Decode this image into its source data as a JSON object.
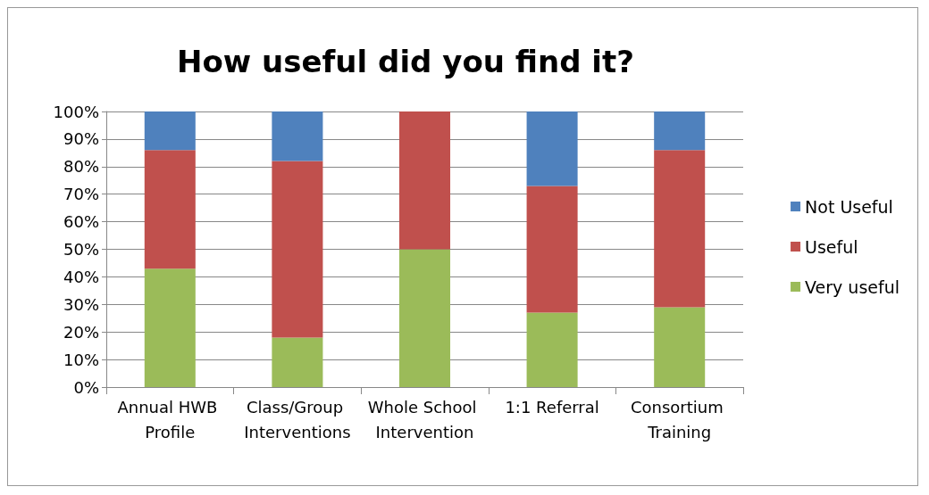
{
  "chart_data": {
    "type": "bar",
    "title": "How useful did you find it?",
    "stacked": true,
    "categories": [
      "Annual HWB Profile",
      "Class/Group Interventions",
      "Whole School Intervention",
      "1:1 Referral",
      "Consortium Training"
    ],
    "series": [
      {
        "name": "Very useful",
        "color": "#9bbb59",
        "values": [
          43,
          18,
          50,
          27,
          29
        ]
      },
      {
        "name": "Useful",
        "color": "#c0504d",
        "values": [
          43,
          64,
          50,
          46,
          57
        ]
      },
      {
        "name": "Not Useful",
        "color": "#4f81bd",
        "values": [
          14,
          18,
          0,
          27,
          14
        ]
      }
    ],
    "ylim": [
      0,
      100
    ],
    "yticks": [
      {
        "value": 0,
        "label": "0%"
      },
      {
        "value": 10,
        "label": "10%"
      },
      {
        "value": 20,
        "label": "20%"
      },
      {
        "value": 30,
        "label": "30%"
      },
      {
        "value": 40,
        "label": "40%"
      },
      {
        "value": 50,
        "label": "50%"
      },
      {
        "value": 60,
        "label": "60%"
      },
      {
        "value": 70,
        "label": "70%"
      },
      {
        "value": 80,
        "label": "80%"
      },
      {
        "value": 90,
        "label": "90%"
      },
      {
        "value": 100,
        "label": "100%"
      }
    ],
    "grid": "y",
    "legend": "right"
  }
}
